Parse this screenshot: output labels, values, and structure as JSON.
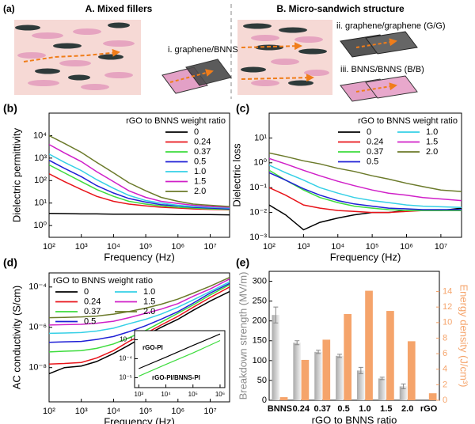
{
  "schematic": {
    "panel_label": "(a)",
    "left_title": "A. Mixed fillers",
    "right_title": "B. Micro-sandwich structure",
    "labels": [
      "i. graphene/BNNS (G/B)",
      "ii. graphene/graphene (G/G)",
      "iii. BNNS/BNNS (B/B)"
    ]
  },
  "chart_data": [
    {
      "type": "line",
      "panel_label": "(b)",
      "xlabel": "Frequency (Hz)",
      "ylabel": "Dielectric permittivity",
      "log_x": true,
      "log_y": true,
      "legend_title": "rGO to BNNS weight ratio",
      "legend_position": "upper right",
      "legend_columns": 1,
      "x": [
        100,
        300,
        1000,
        3000,
        10000,
        30000,
        100000,
        300000,
        1000000,
        3000000,
        10000000,
        40000000
      ],
      "xlim": [
        100,
        40000000
      ],
      "xticks": [
        {
          "value": 100,
          "label": "10²"
        },
        {
          "value": 1000,
          "label": "10³"
        },
        {
          "value": 10000,
          "label": "10⁴"
        },
        {
          "value": 100000,
          "label": "10⁵"
        },
        {
          "value": 1000000,
          "label": "10⁶"
        },
        {
          "value": 10000000,
          "label": "10⁷"
        }
      ],
      "ylim": [
        0.3,
        100000
      ],
      "yticks": [
        {
          "value": 1,
          "label": "10⁰"
        },
        {
          "value": 10,
          "label": "10¹"
        },
        {
          "value": 100,
          "label": "10²"
        },
        {
          "value": 1000,
          "label": "10³"
        },
        {
          "value": 10000,
          "label": "10⁴"
        }
      ],
      "series": [
        {
          "name": "0",
          "color": "#000000",
          "values": [
            3.5,
            3.4,
            3.3,
            3.3,
            3.2,
            3.2,
            3.2,
            3.2,
            3.1,
            3.1,
            3.1,
            3.0
          ]
        },
        {
          "name": "0.24",
          "color": "#e8141a",
          "values": [
            200,
            90,
            40,
            20,
            12,
            9,
            7.5,
            6.5,
            6,
            5.5,
            5.2,
            5
          ]
        },
        {
          "name": "0.37",
          "color": "#3ddc3d",
          "values": [
            500,
            220,
            90,
            40,
            20,
            12,
            9,
            7.5,
            6.5,
            6,
            5.5,
            5.2
          ]
        },
        {
          "name": "0.5",
          "color": "#1f1fd6",
          "values": [
            800,
            350,
            150,
            60,
            28,
            16,
            11,
            8.5,
            7.5,
            6.5,
            6,
            5.5
          ]
        },
        {
          "name": "1.0",
          "color": "#35d0e6",
          "values": [
            1500,
            650,
            280,
            110,
            45,
            22,
            13,
            10,
            8,
            7,
            6.5,
            6
          ]
        },
        {
          "name": "1.5",
          "color": "#d020c8",
          "values": [
            4000,
            1700,
            700,
            250,
            90,
            35,
            18,
            12,
            9.5,
            8,
            7,
            6.5
          ]
        },
        {
          "name": "2.0",
          "color": "#6b7a2a",
          "values": [
            10000,
            4500,
            1800,
            650,
            220,
            80,
            35,
            18,
            12,
            9,
            8,
            7
          ]
        }
      ]
    },
    {
      "type": "line",
      "panel_label": "(c)",
      "xlabel": "Frequency (Hz)",
      "ylabel": "Dielectric loss",
      "log_x": true,
      "log_y": true,
      "legend_title": "rGO to BNNS weight ratio",
      "legend_position": "upper right",
      "legend_columns": 2,
      "x": [
        100,
        300,
        1000,
        3000,
        10000,
        30000,
        100000,
        300000,
        1000000,
        3000000,
        10000000,
        40000000
      ],
      "xlim": [
        100,
        40000000
      ],
      "xticks": [
        {
          "value": 100,
          "label": "10²"
        },
        {
          "value": 1000,
          "label": "10³"
        },
        {
          "value": 10000,
          "label": "10⁴"
        },
        {
          "value": 100000,
          "label": "10⁵"
        },
        {
          "value": 1000000,
          "label": "10⁶"
        },
        {
          "value": 10000000,
          "label": "10⁷"
        }
      ],
      "ylim": [
        0.001,
        100
      ],
      "yticks": [
        {
          "value": 0.001,
          "label": "10⁻³"
        },
        {
          "value": 0.01,
          "label": "10⁻²"
        },
        {
          "value": 0.1,
          "label": "10⁻¹"
        },
        {
          "value": 1,
          "label": "10⁰"
        },
        {
          "value": 10,
          "label": "10¹"
        }
      ],
      "series": [
        {
          "name": "0",
          "color": "#000000",
          "values": [
            0.02,
            0.008,
            0.002,
            0.004,
            0.006,
            0.008,
            0.01,
            0.01,
            0.012,
            0.012,
            0.012,
            0.015
          ]
        },
        {
          "name": "0.24",
          "color": "#e8141a",
          "values": [
            0.1,
            0.05,
            0.02,
            0.015,
            0.012,
            0.011,
            0.01,
            0.01,
            0.011,
            0.012,
            0.012,
            0.012
          ]
        },
        {
          "name": "0.37",
          "color": "#3ddc3d",
          "values": [
            0.5,
            0.2,
            0.08,
            0.04,
            0.025,
            0.018,
            0.015,
            0.013,
            0.012,
            0.012,
            0.012,
            0.012
          ]
        },
        {
          "name": "0.5",
          "color": "#1f1fd6",
          "values": [
            0.4,
            0.2,
            0.09,
            0.05,
            0.03,
            0.022,
            0.018,
            0.015,
            0.014,
            0.013,
            0.013,
            0.013
          ]
        },
        {
          "name": "1.0",
          "color": "#35d0e6",
          "values": [
            0.8,
            0.4,
            0.2,
            0.1,
            0.06,
            0.04,
            0.03,
            0.025,
            0.02,
            0.018,
            0.017,
            0.016
          ]
        },
        {
          "name": "1.5",
          "color": "#d020c8",
          "values": [
            1.5,
            0.9,
            0.5,
            0.3,
            0.18,
            0.12,
            0.08,
            0.06,
            0.05,
            0.04,
            0.035,
            0.03
          ]
        },
        {
          "name": "2.0",
          "color": "#6b7a2a",
          "values": [
            2.5,
            1.8,
            1.2,
            0.9,
            0.6,
            0.45,
            0.3,
            0.22,
            0.15,
            0.11,
            0.08,
            0.07
          ]
        }
      ]
    },
    {
      "type": "line",
      "panel_label": "(d)",
      "xlabel": "Frequency (Hz)",
      "ylabel": "AC conductivity (S/cm)",
      "log_x": true,
      "log_y": true,
      "legend_title": "rGO to BNNS weight ratio",
      "legend_position": "upper left",
      "legend_columns": 2,
      "x": [
        100,
        300,
        1000,
        3000,
        10000,
        30000,
        100000,
        300000,
        1000000,
        3000000,
        10000000,
        40000000
      ],
      "xlim": [
        100,
        40000000
      ],
      "xticks": [
        {
          "value": 100,
          "label": "10²"
        },
        {
          "value": 1000,
          "label": "10³"
        },
        {
          "value": 10000,
          "label": "10⁴"
        },
        {
          "value": 100000,
          "label": "10⁵"
        },
        {
          "value": 1000000,
          "label": "10⁶"
        },
        {
          "value": 10000000,
          "label": "10⁷"
        }
      ],
      "ylim": [
        2e-10,
        0.0005
      ],
      "yticks": [
        {
          "value": 1e-08,
          "label": "10⁻⁸"
        },
        {
          "value": 1e-06,
          "label": "10⁻⁶"
        },
        {
          "value": 0.0001,
          "label": "10⁻⁴"
        }
      ],
      "series": [
        {
          "name": "0",
          "color": "#000000",
          "values": [
            5e-09,
            1e-08,
            1.2e-08,
            2e-08,
            5e-08,
            1.3e-07,
            4e-07,
            1e-06,
            2.5e-06,
            7e-06,
            2e-05,
            6e-05
          ]
        },
        {
          "name": "0.24",
          "color": "#e8141a",
          "values": [
            1.5e-08,
            1.6e-08,
            1.8e-08,
            3e-08,
            7e-08,
            2e-07,
            5e-07,
            1.3e-06,
            3.5e-06,
            1e-05,
            3e-05,
            0.0001
          ]
        },
        {
          "name": "0.37",
          "color": "#3ddc3d",
          "values": [
            6e-08,
            6.5e-08,
            7e-08,
            9e-08,
            1.5e-07,
            3e-07,
            7e-07,
            1.8e-06,
            5e-06,
            1.3e-05,
            4e-05,
            0.00013
          ]
        },
        {
          "name": "0.5",
          "color": "#1f1fd6",
          "values": [
            1.8e-07,
            1.9e-07,
            2e-07,
            2.5e-07,
            3.5e-07,
            6e-07,
            1.2e-06,
            2.5e-06,
            6e-06,
            1.6e-05,
            5e-05,
            0.00015
          ]
        },
        {
          "name": "1.0",
          "color": "#35d0e6",
          "values": [
            5e-07,
            5.2e-07,
            5.5e-07,
            6.5e-07,
            9e-07,
            1.5e-06,
            2.5e-06,
            4.5e-06,
            1e-05,
            2.3e-05,
            6e-05,
            0.00018
          ]
        },
        {
          "name": "1.5",
          "color": "#d020c8",
          "values": [
            1.3e-06,
            1.35e-06,
            1.4e-06,
            1.6e-06,
            2e-06,
            3e-06,
            5e-06,
            8e-06,
            1.5e-05,
            3.5e-05,
            8e-05,
            0.00025
          ]
        },
        {
          "name": "2.0",
          "color": "#6b7a2a",
          "values": [
            3e-06,
            3.1e-06,
            3.3e-06,
            3.6e-06,
            4.5e-06,
            6e-06,
            9e-06,
            1.4e-05,
            2.5e-05,
            5e-05,
            0.00011,
            0.0003
          ]
        }
      ],
      "inset": {
        "type": "line",
        "log_x": true,
        "log_y": true,
        "x": [
          1000,
          10000,
          100000,
          1000000
        ],
        "xlim": [
          700,
          1500000
        ],
        "xticks": [
          {
            "value": 1000,
            "label": "10³"
          },
          {
            "value": 10000,
            "label": "10⁴"
          },
          {
            "value": 100000,
            "label": "10⁵"
          },
          {
            "value": 1000000,
            "label": "10⁶"
          }
        ],
        "ylim": [
          3e-06,
          0.003
        ],
        "yticks": [
          {
            "value": 1e-05,
            "label": "10⁻⁵"
          },
          {
            "value": 0.0001,
            "label": "10⁻⁴"
          },
          {
            "value": 0.001,
            "label": "10⁻³"
          }
        ],
        "series": [
          {
            "name": "rGO-PI",
            "color": "#000000",
            "values": [
              3e-05,
              0.00012,
              0.0005,
              0.002
            ]
          },
          {
            "name": "rGO-PI/BNNS-PI",
            "color": "#3ddc3d",
            "values": [
              1.2e-05,
              5e-05,
              0.0002,
              0.0009
            ]
          }
        ]
      }
    },
    {
      "type": "bar",
      "panel_label": "(e)",
      "xlabel": "rGO to BNNS ratio",
      "ylabel": "Breakdown strength (MV/m)",
      "y2label": "Energy density (J/cm³)",
      "categories": [
        "BNNS",
        "0.24",
        "0.37",
        "0.5",
        "1.0",
        "1.5",
        "2.0",
        "rGO"
      ],
      "ylim": [
        0,
        325
      ],
      "yticks": [
        0,
        50,
        100,
        150,
        200,
        250,
        300
      ],
      "y2lim": [
        0,
        16.6
      ],
      "y2ticks": [
        0,
        2,
        4,
        6,
        8,
        10,
        12,
        14
      ],
      "series": [
        {
          "color": "#c8c8c8",
          "values": [
            215,
            145,
            122,
            112,
            75,
            55,
            35,
            null
          ],
          "errors": [
            20,
            5,
            4,
            4,
            8,
            3,
            6,
            null
          ]
        },
        {
          "color": "#f5a46b",
          "axis": "y2",
          "values": [
            0.4,
            5.2,
            7.8,
            11.1,
            14.1,
            11.5,
            7.6,
            0.9
          ]
        }
      ]
    }
  ]
}
